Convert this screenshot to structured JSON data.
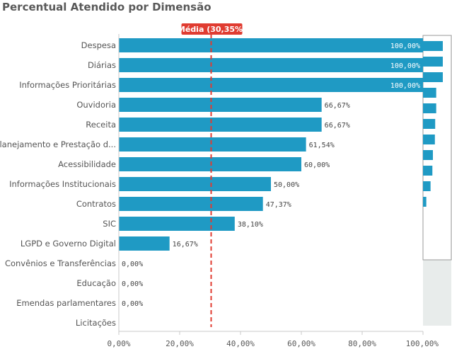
{
  "title": "Percentual Atendido por Dimensão",
  "chart_data": {
    "type": "bar",
    "orientation": "horizontal",
    "title": "Percentual Atendido por Dimensão",
    "categories": [
      "Despesa",
      "Diárias",
      "Informações Prioritárias",
      "Ouvidoria",
      "Receita",
      "Planejamento e Prestação d...",
      "Acessibilidade",
      "Informações Institucionais",
      "Contratos",
      "SIC",
      "LGPD e Governo Digital",
      "Convênios e Transferências",
      "Educação",
      "Emendas parlamentares",
      "Licitações"
    ],
    "values": [
      100,
      100,
      100,
      66.67,
      66.67,
      61.54,
      60,
      50,
      47.37,
      38.1,
      16.67,
      0,
      0,
      0,
      null
    ],
    "value_labels": [
      "100,00%",
      "100,00%",
      "100,00%",
      "66,67%",
      "66,67%",
      "61,54%",
      "60,00%",
      "50,00%",
      "47,37%",
      "38,10%",
      "16,67%",
      "0,00%",
      "0,00%",
      "0,00%",
      ""
    ],
    "xlim": [
      0,
      100
    ],
    "x_ticks": [
      0,
      20,
      40,
      60,
      80,
      100
    ],
    "x_tick_labels": [
      "0,00%",
      "20,00%",
      "40,00%",
      "60,00%",
      "80,00%",
      "100,00%"
    ],
    "reference_line": {
      "value": 30.35,
      "label": "Média (30,35%)",
      "color": "#e03c31"
    },
    "bar_color": "#1f9ac4",
    "grid": false
  }
}
